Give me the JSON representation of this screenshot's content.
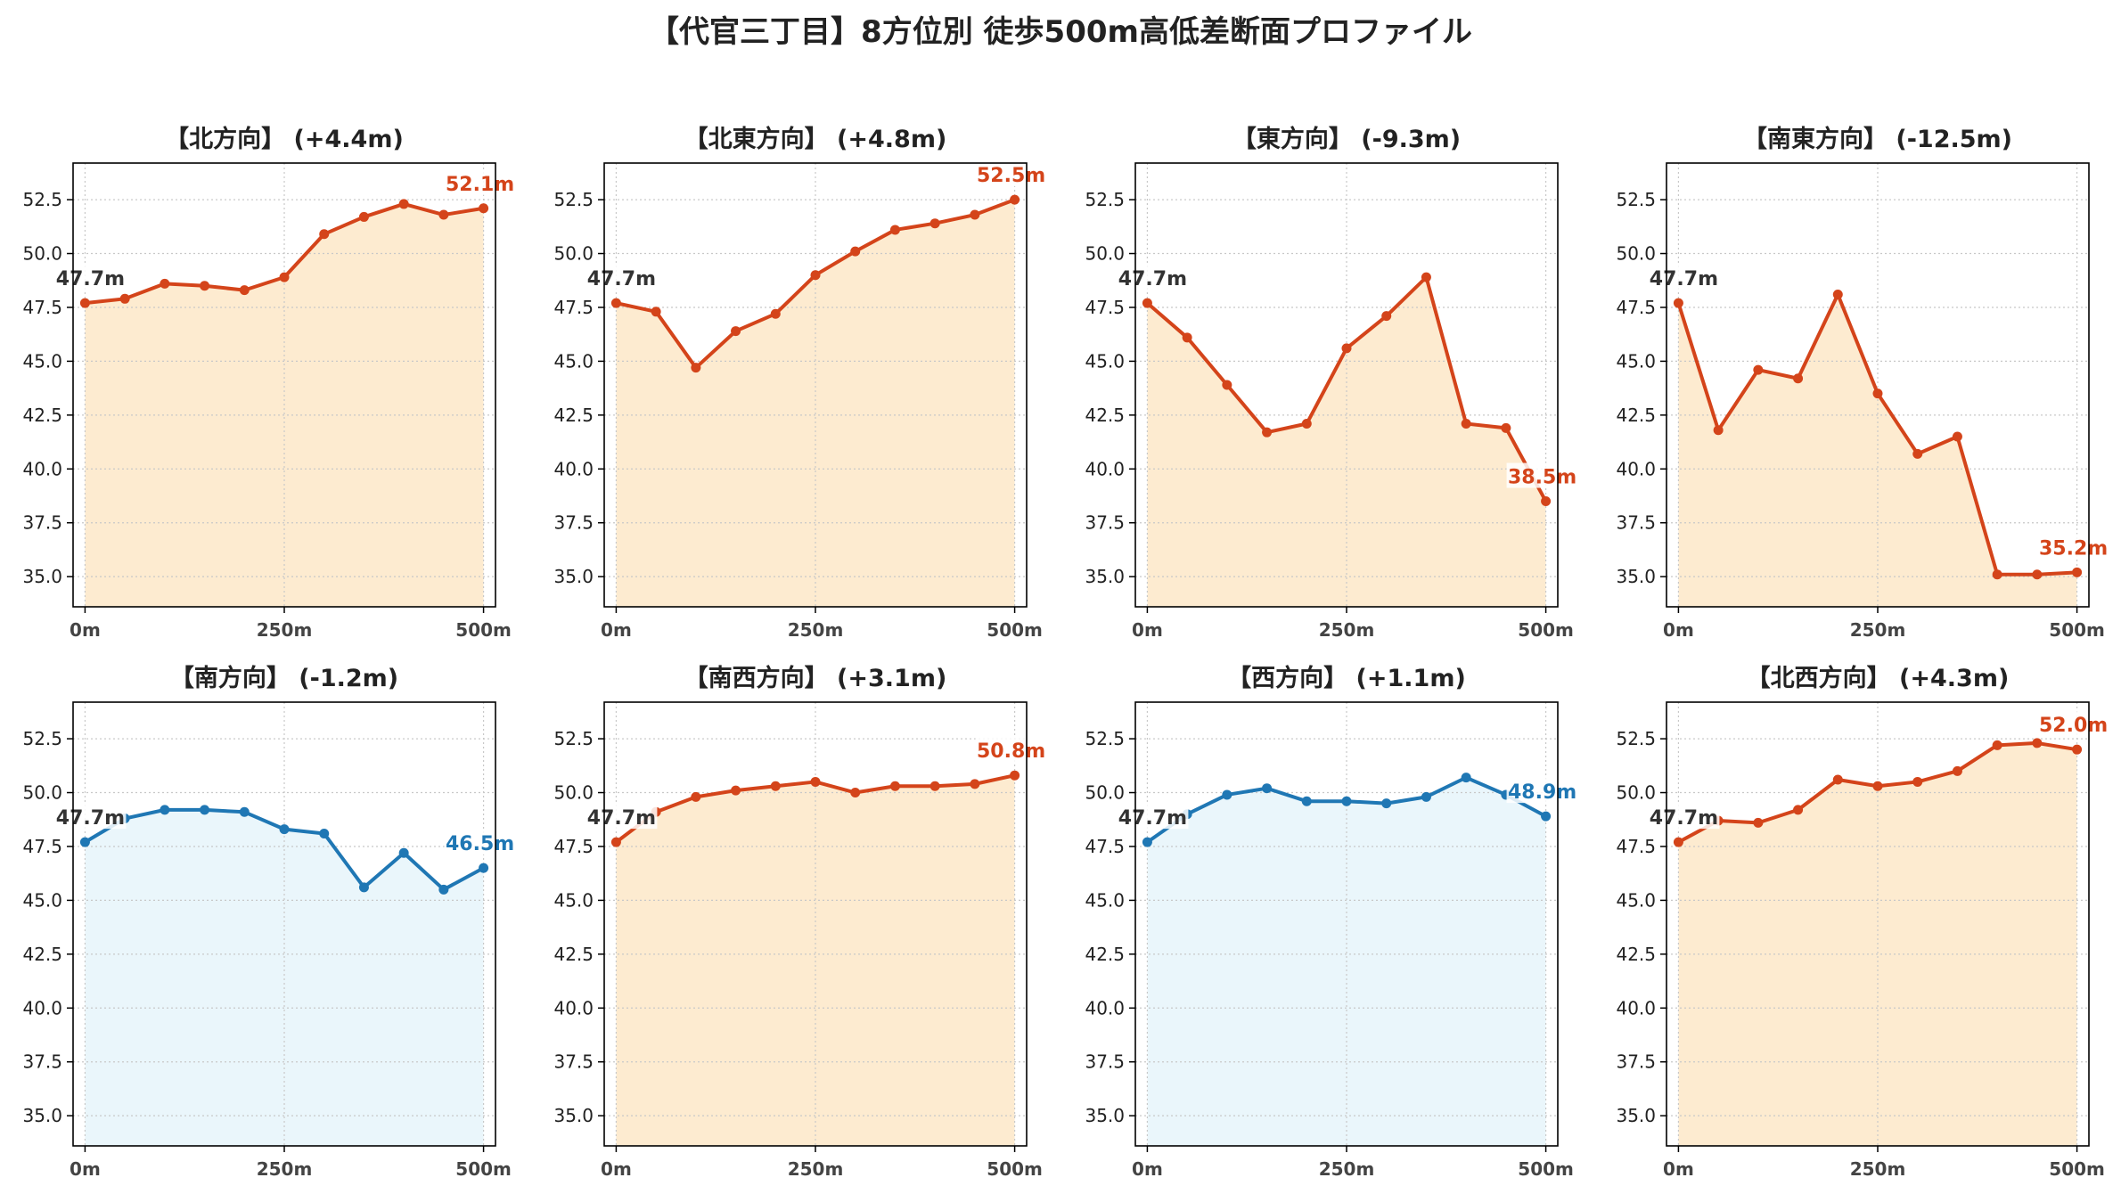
{
  "title": "【代官三丁目】8方位別 徒歩500m高低差断面プロファイル",
  "colors": {
    "up_line": "#d4441a",
    "up_fill": "#fdebd0",
    "down_line": "#1f77b4",
    "down_fill": "#eaf6fb",
    "start_label": "#333333",
    "grid": "#c8c8c8"
  },
  "chart_data": [
    {
      "type": "area",
      "title": "【北方向】 (+4.4m)",
      "trend": "up",
      "start_label": "47.7m",
      "end_label": "52.1m",
      "x": [
        0,
        50,
        100,
        150,
        200,
        250,
        300,
        350,
        400,
        450,
        500
      ],
      "y": [
        47.7,
        47.9,
        48.6,
        48.5,
        48.3,
        48.9,
        50.9,
        51.7,
        52.3,
        51.8,
        52.1
      ],
      "xticks": [
        "0m",
        "250m",
        "500m"
      ],
      "yticks": [
        "35.0",
        "37.5",
        "40.0",
        "42.5",
        "45.0",
        "47.5",
        "50.0",
        "52.5"
      ],
      "ylim": [
        33.6,
        54.2
      ],
      "xlim": [
        -15,
        515
      ],
      "grid": true
    },
    {
      "type": "area",
      "title": "【北東方向】 (+4.8m)",
      "trend": "up",
      "start_label": "47.7m",
      "end_label": "52.5m",
      "x": [
        0,
        50,
        100,
        150,
        200,
        250,
        300,
        350,
        400,
        450,
        500
      ],
      "y": [
        47.7,
        47.3,
        44.7,
        46.4,
        47.2,
        49.0,
        50.1,
        51.1,
        51.4,
        51.8,
        52.5
      ],
      "xticks": [
        "0m",
        "250m",
        "500m"
      ],
      "yticks": [
        "35.0",
        "37.5",
        "40.0",
        "42.5",
        "45.0",
        "47.5",
        "50.0",
        "52.5"
      ],
      "ylim": [
        33.6,
        54.2
      ],
      "xlim": [
        -15,
        515
      ],
      "grid": true
    },
    {
      "type": "area",
      "title": "【東方向】 (-9.3m)",
      "trend": "up",
      "start_label": "47.7m",
      "end_label": "38.5m",
      "x": [
        0,
        50,
        100,
        150,
        200,
        250,
        300,
        350,
        400,
        450,
        500
      ],
      "y": [
        47.7,
        46.1,
        43.9,
        41.7,
        42.1,
        45.6,
        47.1,
        48.9,
        42.1,
        41.9,
        38.5
      ],
      "xticks": [
        "0m",
        "250m",
        "500m"
      ],
      "yticks": [
        "35.0",
        "37.5",
        "40.0",
        "42.5",
        "45.0",
        "47.5",
        "50.0",
        "52.5"
      ],
      "ylim": [
        33.6,
        54.2
      ],
      "xlim": [
        -15,
        515
      ],
      "grid": true
    },
    {
      "type": "area",
      "title": "【南東方向】 (-12.5m)",
      "trend": "up",
      "start_label": "47.7m",
      "end_label": "35.2m",
      "x": [
        0,
        50,
        100,
        150,
        200,
        250,
        300,
        350,
        400,
        450,
        500
      ],
      "y": [
        47.7,
        41.8,
        44.6,
        44.2,
        48.1,
        43.5,
        40.7,
        41.5,
        35.1,
        35.1,
        35.2
      ],
      "xticks": [
        "0m",
        "250m",
        "500m"
      ],
      "yticks": [
        "35.0",
        "37.5",
        "40.0",
        "42.5",
        "45.0",
        "47.5",
        "50.0",
        "52.5"
      ],
      "ylim": [
        33.6,
        54.2
      ],
      "xlim": [
        -15,
        515
      ],
      "grid": true
    },
    {
      "type": "area",
      "title": "【南方向】 (-1.2m)",
      "trend": "down",
      "start_label": "47.7m",
      "end_label": "46.5m",
      "x": [
        0,
        50,
        100,
        150,
        200,
        250,
        300,
        350,
        400,
        450,
        500
      ],
      "y": [
        47.7,
        48.8,
        49.2,
        49.2,
        49.1,
        48.3,
        48.1,
        45.6,
        47.2,
        45.5,
        46.5
      ],
      "xticks": [
        "0m",
        "250m",
        "500m"
      ],
      "yticks": [
        "35.0",
        "37.5",
        "40.0",
        "42.5",
        "45.0",
        "47.5",
        "50.0",
        "52.5"
      ],
      "ylim": [
        33.6,
        54.2
      ],
      "xlim": [
        -15,
        515
      ],
      "grid": true
    },
    {
      "type": "area",
      "title": "【南西方向】 (+3.1m)",
      "trend": "up",
      "start_label": "47.7m",
      "end_label": "50.8m",
      "x": [
        0,
        50,
        100,
        150,
        200,
        250,
        300,
        350,
        400,
        450,
        500
      ],
      "y": [
        47.7,
        49.1,
        49.8,
        50.1,
        50.3,
        50.5,
        50.0,
        50.3,
        50.3,
        50.4,
        50.8
      ],
      "xticks": [
        "0m",
        "250m",
        "500m"
      ],
      "yticks": [
        "35.0",
        "37.5",
        "40.0",
        "42.5",
        "45.0",
        "47.5",
        "50.0",
        "52.5"
      ],
      "ylim": [
        33.6,
        54.2
      ],
      "xlim": [
        -15,
        515
      ],
      "grid": true
    },
    {
      "type": "area",
      "title": "【西方向】 (+1.1m)",
      "trend": "down",
      "start_label": "47.7m",
      "end_label": "48.9m",
      "x": [
        0,
        50,
        100,
        150,
        200,
        250,
        300,
        350,
        400,
        450,
        500
      ],
      "y": [
        47.7,
        49.0,
        49.9,
        50.2,
        49.6,
        49.6,
        49.5,
        49.8,
        50.7,
        49.9,
        48.9
      ],
      "xticks": [
        "0m",
        "250m",
        "500m"
      ],
      "yticks": [
        "35.0",
        "37.5",
        "40.0",
        "42.5",
        "45.0",
        "47.5",
        "50.0",
        "52.5"
      ],
      "ylim": [
        33.6,
        54.2
      ],
      "xlim": [
        -15,
        515
      ],
      "grid": true
    },
    {
      "type": "area",
      "title": "【北西方向】 (+4.3m)",
      "trend": "up",
      "start_label": "47.7m",
      "end_label": "52.0m",
      "x": [
        0,
        50,
        100,
        150,
        200,
        250,
        300,
        350,
        400,
        450,
        500
      ],
      "y": [
        47.7,
        48.7,
        48.6,
        49.2,
        50.6,
        50.3,
        50.5,
        51.0,
        52.2,
        52.3,
        52.0
      ],
      "xticks": [
        "0m",
        "250m",
        "500m"
      ],
      "yticks": [
        "35.0",
        "37.5",
        "40.0",
        "42.5",
        "45.0",
        "47.5",
        "50.0",
        "52.5"
      ],
      "ylim": [
        33.6,
        54.2
      ],
      "xlim": [
        -15,
        515
      ],
      "grid": true
    }
  ]
}
